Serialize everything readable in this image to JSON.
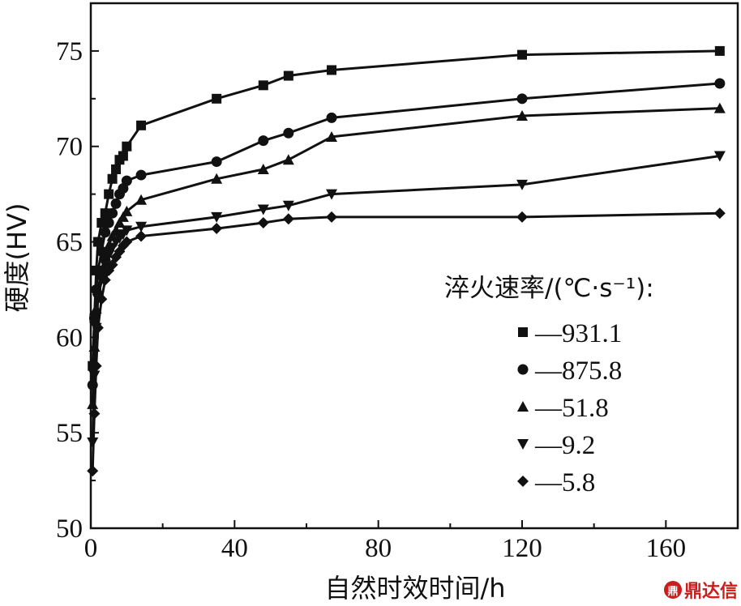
{
  "chart_data": {
    "type": "line",
    "xlabel": "自然时效时间/h",
    "ylabel": "硬度(HV)",
    "xlim": [
      0,
      180
    ],
    "ylim": [
      50,
      77.5
    ],
    "xticks": [
      0,
      40,
      80,
      120,
      160
    ],
    "yticks": [
      50,
      55,
      60,
      65,
      70,
      75
    ],
    "grid": false,
    "legend": {
      "title": "淬火速率/(℃·s⁻¹):",
      "placement": "right",
      "entries": [
        "—931.1",
        "—875.8",
        "—51.8",
        "—9.2",
        "—5.8"
      ]
    },
    "series": [
      {
        "name": "931.1",
        "marker": "square",
        "x": [
          0.5,
          1,
          1.5,
          2,
          3,
          4,
          5,
          6,
          7,
          8,
          9,
          10,
          14,
          35,
          48,
          55,
          67,
          120,
          175
        ],
        "y": [
          58.5,
          61,
          63.5,
          65,
          66,
          66.5,
          67.5,
          68.3,
          68.8,
          69.3,
          69.5,
          70,
          71.1,
          72.5,
          73.2,
          73.7,
          74,
          74.8,
          75
        ]
      },
      {
        "name": "875.8",
        "marker": "circle",
        "x": [
          0.5,
          1,
          1.5,
          2,
          3,
          4,
          5,
          6,
          7,
          8,
          9,
          10,
          14,
          35,
          48,
          55,
          67,
          120,
          175
        ],
        "y": [
          57.5,
          61,
          62.5,
          63.5,
          64.5,
          65.5,
          66,
          66.5,
          67,
          67.5,
          67.8,
          68.2,
          68.5,
          69.2,
          70.3,
          70.7,
          71.5,
          72.5,
          73.3
        ]
      },
      {
        "name": "51.8",
        "marker": "triangle-up",
        "x": [
          0.5,
          1,
          1.5,
          2,
          3,
          4,
          5,
          6,
          7,
          8,
          9,
          10,
          14,
          35,
          48,
          55,
          67,
          120,
          175
        ],
        "y": [
          56.5,
          59.5,
          61.5,
          62.5,
          63.5,
          64.3,
          64.8,
          65.3,
          65.6,
          66,
          66.3,
          66.6,
          67.2,
          68.3,
          68.8,
          69.3,
          70.5,
          71.6,
          72
        ]
      },
      {
        "name": "9.2",
        "marker": "triangle-down",
        "x": [
          0.5,
          1,
          1.5,
          2,
          3,
          4,
          5,
          6,
          7,
          8,
          9,
          10,
          14,
          35,
          48,
          55,
          67,
          120,
          175
        ],
        "y": [
          54.5,
          58,
          60.5,
          62,
          63,
          63.8,
          64.3,
          64.7,
          65,
          65.2,
          65.4,
          65.6,
          65.8,
          66.3,
          66.7,
          66.9,
          67.5,
          68,
          69.5
        ]
      },
      {
        "name": "5.8",
        "marker": "diamond",
        "x": [
          0.5,
          1,
          1.5,
          2,
          3,
          4,
          5,
          6,
          7,
          8,
          9,
          10,
          14,
          35,
          48,
          55,
          67,
          120,
          175
        ],
        "y": [
          53,
          56,
          58.5,
          60.5,
          62,
          63,
          63.5,
          63.8,
          64.2,
          64.5,
          64.8,
          65,
          65.3,
          65.7,
          66,
          66.2,
          66.3,
          66.3,
          66.5
        ]
      }
    ]
  },
  "watermark": {
    "text": "鼎达信",
    "logo_glyph": "鼎"
  }
}
